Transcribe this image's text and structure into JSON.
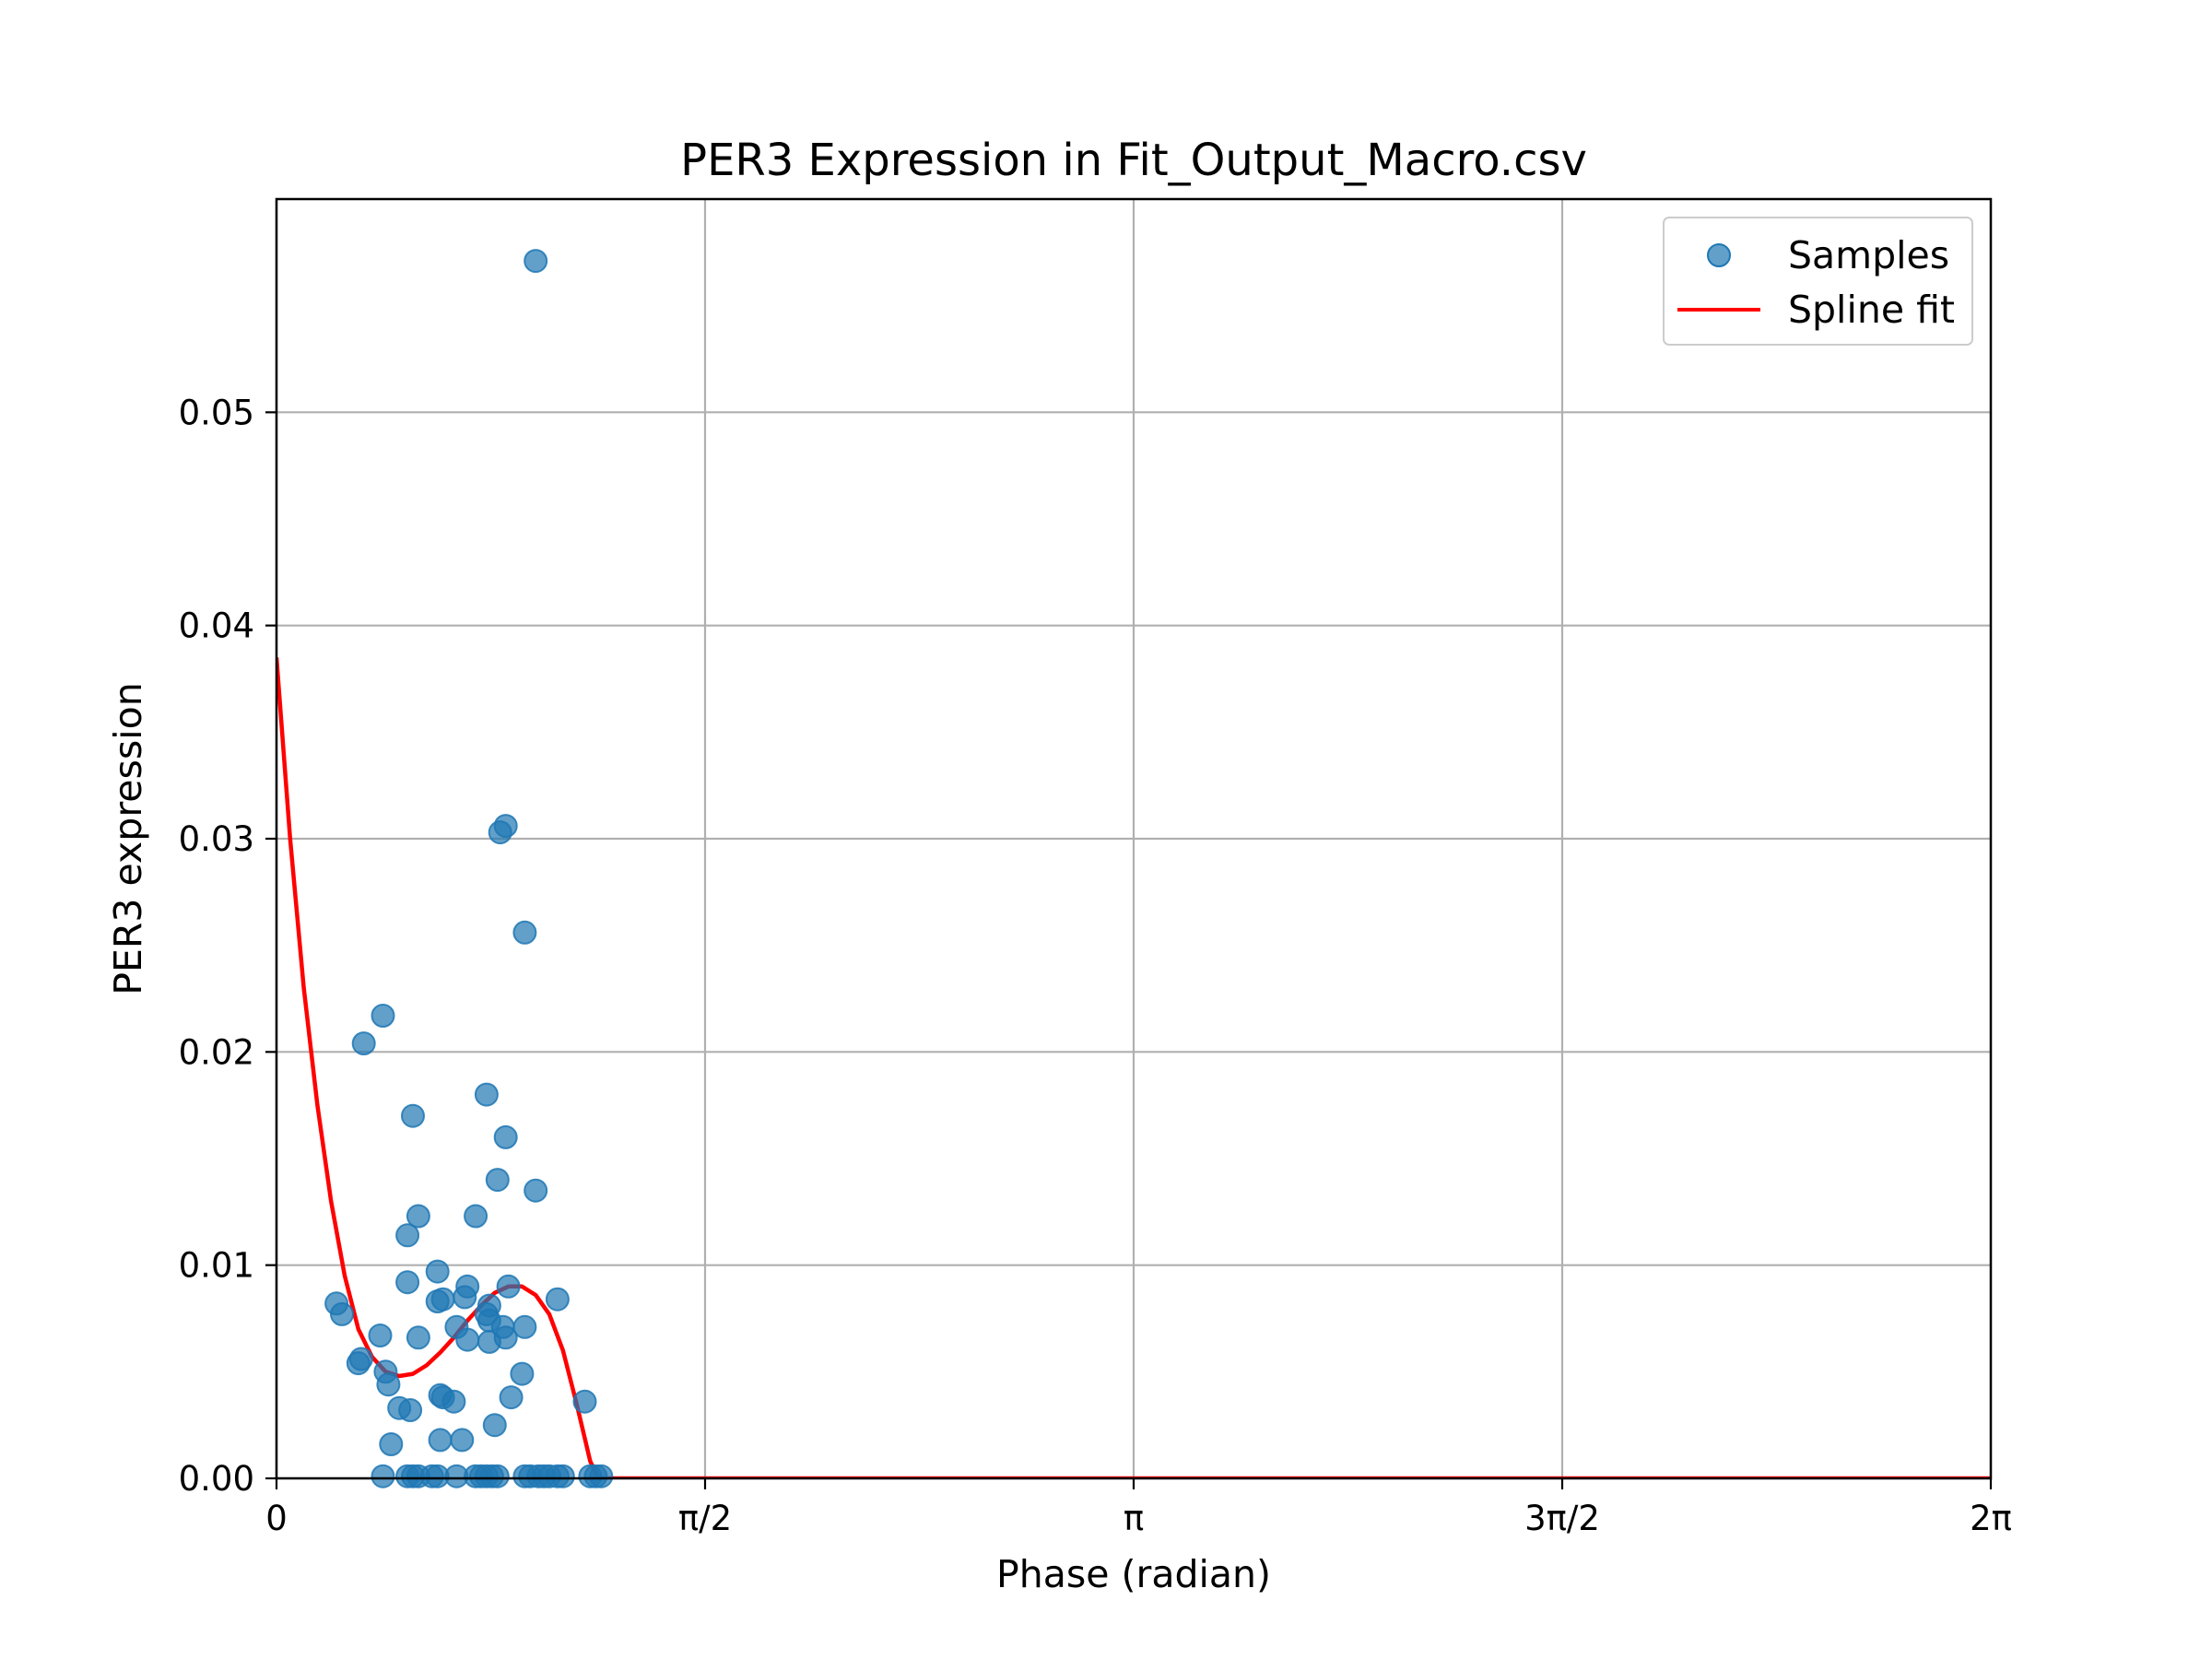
{
  "chart_data": {
    "type": "scatter",
    "title": "PER3 Expression in Fit_Output_Macro.csv",
    "xlabel": "Phase (radian)",
    "ylabel": "PER3 expression",
    "xlim": [
      0,
      6.2832
    ],
    "ylim": [
      0,
      0.06
    ],
    "grid": true,
    "legend_position": "top-right",
    "x_ticks": [
      {
        "value": 0,
        "label": "0"
      },
      {
        "value": 1.5708,
        "label": "π/2"
      },
      {
        "value": 3.1416,
        "label": "π"
      },
      {
        "value": 4.7124,
        "label": "3π/2"
      },
      {
        "value": 6.2832,
        "label": "2π"
      }
    ],
    "y_ticks": [
      {
        "value": 0.0,
        "label": "0.00"
      },
      {
        "value": 0.01,
        "label": "0.01"
      },
      {
        "value": 0.02,
        "label": "0.02"
      },
      {
        "value": 0.03,
        "label": "0.03"
      },
      {
        "value": 0.04,
        "label": "0.04"
      },
      {
        "value": 0.05,
        "label": "0.05"
      }
    ],
    "series": [
      {
        "name": "Samples",
        "kind": "scatter",
        "color": "#1f77b4",
        "points": [
          [
            0.95,
            0.0571
          ],
          [
            0.84,
            0.0306
          ],
          [
            0.82,
            0.0303
          ],
          [
            0.91,
            0.0256
          ],
          [
            0.39,
            0.0217
          ],
          [
            0.32,
            0.0204
          ],
          [
            0.77,
            0.018
          ],
          [
            0.5,
            0.017
          ],
          [
            0.84,
            0.016
          ],
          [
            0.81,
            0.014
          ],
          [
            0.95,
            0.0135
          ],
          [
            0.52,
            0.0123
          ],
          [
            0.73,
            0.0123
          ],
          [
            0.48,
            0.0114
          ],
          [
            0.59,
            0.0097
          ],
          [
            0.48,
            0.0092
          ],
          [
            0.7,
            0.009
          ],
          [
            0.85,
            0.009
          ],
          [
            0.61,
            0.0084
          ],
          [
            0.59,
            0.0083
          ],
          [
            0.69,
            0.0085
          ],
          [
            1.03,
            0.0084
          ],
          [
            0.22,
            0.0082
          ],
          [
            0.78,
            0.0081
          ],
          [
            0.24,
            0.0077
          ],
          [
            0.77,
            0.0077
          ],
          [
            0.66,
            0.0071
          ],
          [
            0.78,
            0.0074
          ],
          [
            0.83,
            0.0071
          ],
          [
            0.91,
            0.0071
          ],
          [
            0.38,
            0.0067
          ],
          [
            0.52,
            0.0066
          ],
          [
            0.7,
            0.0065
          ],
          [
            0.78,
            0.0064
          ],
          [
            0.84,
            0.0066
          ],
          [
            0.31,
            0.0056
          ],
          [
            0.3,
            0.0054
          ],
          [
            0.4,
            0.005
          ],
          [
            0.9,
            0.0049
          ],
          [
            0.41,
            0.0044
          ],
          [
            0.6,
            0.0039
          ],
          [
            0.61,
            0.0038
          ],
          [
            0.86,
            0.0038
          ],
          [
            0.65,
            0.0036
          ],
          [
            1.13,
            0.0036
          ],
          [
            0.45,
            0.0033
          ],
          [
            0.49,
            0.0032
          ],
          [
            0.8,
            0.0025
          ],
          [
            0.6,
            0.0018
          ],
          [
            0.68,
            0.0018
          ],
          [
            0.42,
            0.0016
          ],
          [
            0.39,
            0.0001
          ],
          [
            0.48,
            0.0001
          ],
          [
            0.5,
            0.0001
          ],
          [
            0.52,
            0.0001
          ],
          [
            0.57,
            0.0001
          ],
          [
            0.59,
            0.0001
          ],
          [
            0.66,
            0.0001
          ],
          [
            0.73,
            0.0001
          ],
          [
            0.75,
            0.0001
          ],
          [
            0.77,
            0.0001
          ],
          [
            0.79,
            0.0001
          ],
          [
            0.81,
            0.0001
          ],
          [
            0.91,
            0.0001
          ],
          [
            0.93,
            0.0001
          ],
          [
            0.96,
            0.0001
          ],
          [
            0.98,
            0.0001
          ],
          [
            1.0,
            0.0001
          ],
          [
            1.03,
            0.0001
          ],
          [
            1.05,
            0.0001
          ],
          [
            1.15,
            0.0001
          ],
          [
            1.17,
            0.0001
          ],
          [
            1.19,
            0.0001
          ]
        ]
      },
      {
        "name": "Spline fit",
        "kind": "line",
        "color": "#ff0000",
        "points": [
          [
            0.0,
            0.0385
          ],
          [
            0.05,
            0.03
          ],
          [
            0.1,
            0.023
          ],
          [
            0.15,
            0.0175
          ],
          [
            0.2,
            0.013
          ],
          [
            0.25,
            0.0095
          ],
          [
            0.3,
            0.007
          ],
          [
            0.35,
            0.0057
          ],
          [
            0.4,
            0.005
          ],
          [
            0.45,
            0.0048
          ],
          [
            0.5,
            0.0049
          ],
          [
            0.55,
            0.0053
          ],
          [
            0.6,
            0.0059
          ],
          [
            0.65,
            0.0066
          ],
          [
            0.7,
            0.0074
          ],
          [
            0.75,
            0.0081
          ],
          [
            0.8,
            0.0087
          ],
          [
            0.85,
            0.009
          ],
          [
            0.9,
            0.009
          ],
          [
            0.95,
            0.0086
          ],
          [
            1.0,
            0.0077
          ],
          [
            1.05,
            0.006
          ],
          [
            1.1,
            0.0035
          ],
          [
            1.15,
            0.0008
          ],
          [
            1.18,
            0.0
          ],
          [
            1.5,
            0.0
          ],
          [
            2.0,
            0.0
          ],
          [
            3.0,
            0.0
          ],
          [
            4.0,
            0.0
          ],
          [
            5.0,
            0.0
          ],
          [
            6.2832,
            0.0
          ]
        ]
      }
    ]
  }
}
